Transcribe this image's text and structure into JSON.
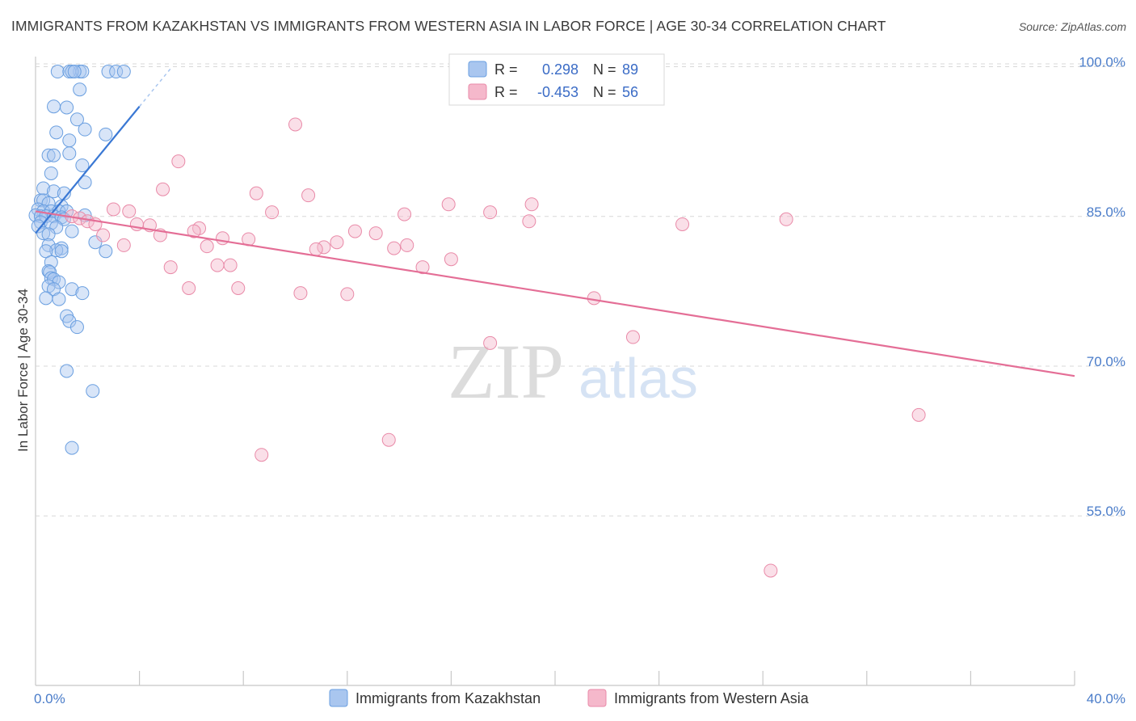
{
  "title": "IMMIGRANTS FROM KAZAKHSTAN VS IMMIGRANTS FROM WESTERN ASIA IN LABOR FORCE | AGE 30-34 CORRELATION CHART",
  "source": "Source: ZipAtlas.com",
  "watermark": {
    "zip": "ZIP",
    "atlas": "atlas"
  },
  "legend_top": {
    "rows": [
      {
        "r_label": "R =",
        "r_value": "0.298",
        "n_label": "N =",
        "n_value": "89",
        "color": "#a9c6ef"
      },
      {
        "r_label": "R =",
        "r_value": "-0.453",
        "n_label": "N =",
        "n_value": "56",
        "color": "#f5b8cb"
      }
    ]
  },
  "chart_data": {
    "type": "scatter",
    "title": "IMMIGRANTS FROM KAZAKHSTAN VS IMMIGRANTS FROM WESTERN ASIA IN LABOR FORCE | AGE 30-34 CORRELATION CHART",
    "xlabel": "",
    "ylabel": "In Labor Force | Age 30-34",
    "xlim": [
      0,
      40
    ],
    "ylim": [
      38.5,
      101.5
    ],
    "x_tick_labels": [
      "0.0%",
      "40.0%"
    ],
    "y_ticks": [
      55,
      70,
      85,
      100
    ],
    "y_tick_labels": [
      "55.0%",
      "70.0%",
      "85.0%",
      "100.0%"
    ],
    "grid": "horizontal dashed",
    "legend_position": "bottom",
    "series": [
      {
        "name": "Immigrants from Kazakhstan",
        "color": "#6a9fe0",
        "fill": "#a9c6ef",
        "trend": {
          "x": [
            0.0,
            4.0
          ],
          "y": [
            83.8,
            96.5
          ],
          "dashed_to": [
            5.2,
            100.3
          ]
        },
        "points": [
          [
            0.85,
            100
          ],
          [
            1.7,
            100
          ],
          [
            1.8,
            100
          ],
          [
            2.8,
            100
          ],
          [
            3.1,
            100
          ],
          [
            1.3,
            100
          ],
          [
            1.4,
            100
          ],
          [
            1.5,
            100
          ],
          [
            3.4,
            100
          ],
          [
            1.7,
            98.2
          ],
          [
            0.7,
            96.5
          ],
          [
            1.2,
            96.4
          ],
          [
            1.6,
            95.2
          ],
          [
            0.8,
            93.9
          ],
          [
            1.9,
            94.2
          ],
          [
            2.7,
            93.7
          ],
          [
            1.3,
            93.1
          ],
          [
            1.3,
            91.8
          ],
          [
            0.5,
            91.6
          ],
          [
            0.7,
            91.6
          ],
          [
            1.8,
            90.6
          ],
          [
            0.6,
            89.8
          ],
          [
            1.9,
            88.9
          ],
          [
            0.3,
            88.3
          ],
          [
            0.7,
            88.0
          ],
          [
            1.1,
            87.8
          ],
          [
            0.2,
            87.1
          ],
          [
            0.3,
            87.1
          ],
          [
            0.5,
            86.8
          ],
          [
            1.0,
            86.5
          ],
          [
            0.1,
            86.2
          ],
          [
            0.3,
            86.0
          ],
          [
            0.6,
            86.0
          ],
          [
            0.9,
            86.0
          ],
          [
            1.2,
            86.0
          ],
          [
            1.9,
            85.6
          ],
          [
            0.0,
            85.6
          ],
          [
            0.2,
            85.5
          ],
          [
            0.4,
            85.5
          ],
          [
            0.7,
            85.5
          ],
          [
            1.0,
            85.4
          ],
          [
            1.1,
            85.2
          ],
          [
            0.2,
            84.9
          ],
          [
            0.6,
            84.8
          ],
          [
            0.1,
            84.5
          ],
          [
            0.8,
            84.4
          ],
          [
            1.4,
            84.0
          ],
          [
            0.3,
            83.8
          ],
          [
            0.5,
            83.7
          ],
          [
            2.3,
            82.9
          ],
          [
            0.5,
            82.6
          ],
          [
            1.0,
            82.3
          ],
          [
            0.8,
            82.1
          ],
          [
            1.0,
            82.0
          ],
          [
            2.7,
            82.0
          ],
          [
            0.4,
            82.0
          ],
          [
            0.6,
            80.9
          ],
          [
            0.5,
            80.0
          ],
          [
            0.55,
            79.9
          ],
          [
            0.6,
            79.3
          ],
          [
            0.7,
            79.2
          ],
          [
            0.9,
            78.9
          ],
          [
            0.5,
            78.5
          ],
          [
            0.7,
            78.2
          ],
          [
            1.4,
            78.2
          ],
          [
            1.8,
            77.8
          ],
          [
            0.4,
            77.3
          ],
          [
            0.9,
            77.2
          ],
          [
            1.2,
            75.5
          ],
          [
            1.3,
            75.0
          ],
          [
            1.6,
            74.4
          ],
          [
            1.2,
            70.0
          ],
          [
            2.2,
            68.0
          ],
          [
            1.4,
            62.3
          ]
        ]
      },
      {
        "name": "Immigrants from Western Asia",
        "color": "#e98aa8",
        "fill": "#f5b8cb",
        "trend": {
          "x": [
            0.0,
            40.0
          ],
          "y": [
            86.0,
            69.5
          ]
        },
        "points": [
          [
            10.0,
            94.7
          ],
          [
            5.5,
            91.0
          ],
          [
            4.9,
            88.2
          ],
          [
            8.5,
            87.8
          ],
          [
            10.5,
            87.6
          ],
          [
            15.9,
            86.7
          ],
          [
            19.1,
            86.7
          ],
          [
            3.0,
            86.2
          ],
          [
            3.6,
            86.0
          ],
          [
            9.1,
            85.9
          ],
          [
            14.2,
            85.7
          ],
          [
            17.5,
            85.9
          ],
          [
            1.4,
            85.5
          ],
          [
            1.7,
            85.3
          ],
          [
            2.0,
            85.0
          ],
          [
            2.3,
            84.7
          ],
          [
            3.9,
            84.7
          ],
          [
            4.4,
            84.6
          ],
          [
            24.9,
            84.7
          ],
          [
            28.9,
            85.2
          ],
          [
            19.0,
            85.0
          ],
          [
            6.3,
            84.3
          ],
          [
            6.1,
            84.0
          ],
          [
            12.3,
            84.0
          ],
          [
            13.1,
            83.8
          ],
          [
            4.8,
            83.6
          ],
          [
            2.6,
            83.6
          ],
          [
            7.2,
            83.3
          ],
          [
            8.2,
            83.2
          ],
          [
            11.6,
            82.9
          ],
          [
            11.1,
            82.4
          ],
          [
            10.8,
            82.2
          ],
          [
            13.8,
            82.3
          ],
          [
            14.3,
            82.6
          ],
          [
            3.4,
            82.6
          ],
          [
            6.6,
            82.5
          ],
          [
            16.0,
            81.2
          ],
          [
            7.5,
            80.6
          ],
          [
            7.0,
            80.6
          ],
          [
            5.2,
            80.4
          ],
          [
            14.9,
            80.4
          ],
          [
            5.9,
            78.3
          ],
          [
            7.8,
            78.3
          ],
          [
            10.2,
            77.8
          ],
          [
            12.0,
            77.7
          ],
          [
            21.5,
            77.3
          ],
          [
            23.0,
            73.4
          ],
          [
            17.5,
            72.8
          ],
          [
            34.0,
            65.6
          ],
          [
            13.6,
            63.1
          ],
          [
            8.7,
            61.6
          ],
          [
            28.3,
            50.0
          ]
        ]
      }
    ]
  }
}
